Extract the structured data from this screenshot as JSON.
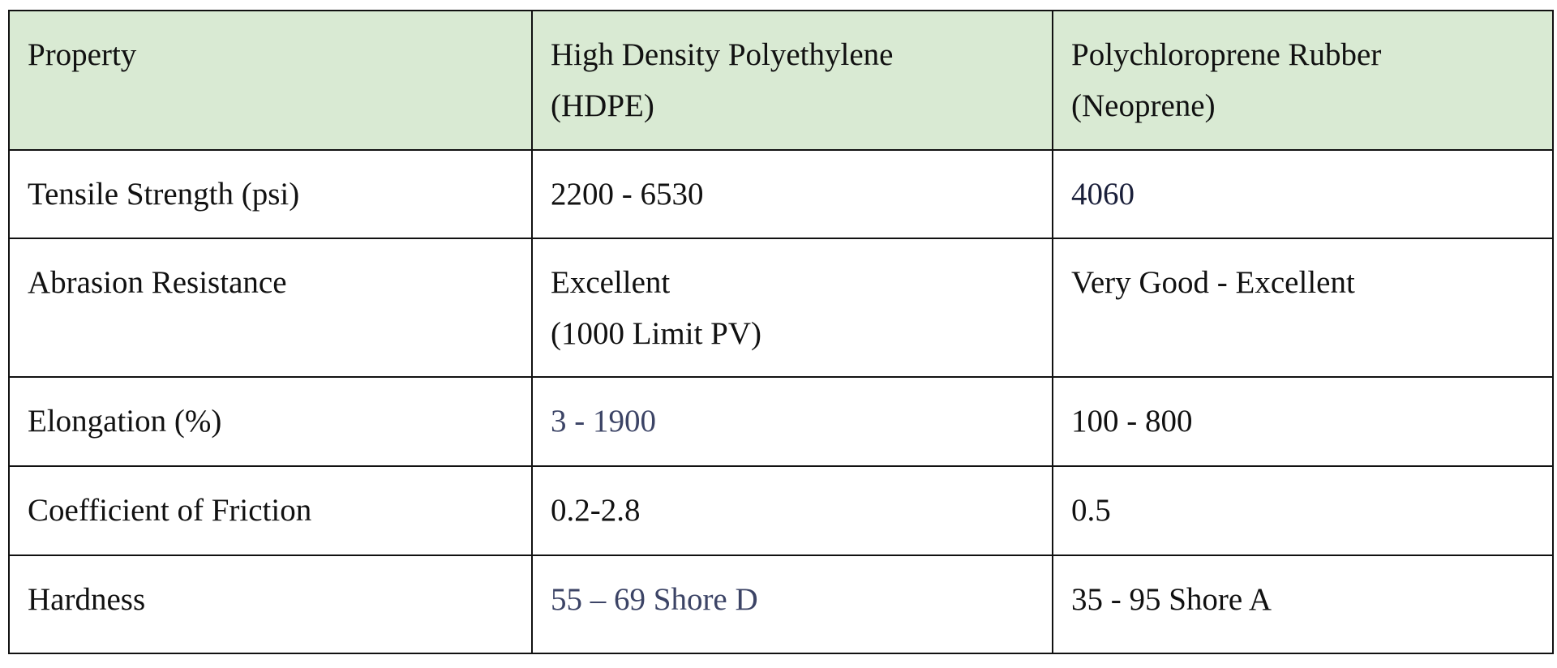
{
  "table": {
    "header": [
      "Property",
      "High Density Polyethylene\n(HDPE)",
      "Polychloroprene Rubber\n(Neoprene)"
    ],
    "rows": [
      [
        "Tensile Strength (psi)",
        "2200 - 6530",
        "4060"
      ],
      [
        "Abrasion Resistance",
        "Excellent\n(1000 Limit PV)",
        "Very Good - Excellent"
      ],
      [
        "Elongation (%)",
        "3 - 1900",
        "100 - 800"
      ],
      [
        "Coefficient of Friction",
        "0.2-2.8",
        "0.5"
      ],
      [
        "Hardness",
        "55 – 69 Shore D",
        "35 - 95 Shore A"
      ]
    ]
  }
}
